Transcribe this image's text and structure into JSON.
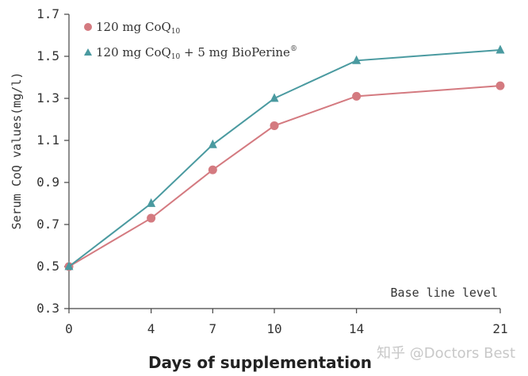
{
  "chart_data": {
    "type": "line",
    "title": "",
    "xlabel": "Days of supplementation",
    "ylabel": "Serum CoQ values(mg/l)",
    "x": [
      0,
      4,
      7,
      10,
      14,
      21
    ],
    "x_tick_labels": [
      "0",
      "4",
      "7",
      "10",
      "14",
      "21"
    ],
    "y_tick_labels": [
      "0.3",
      "0.5",
      "0.7",
      "0.9",
      "1.1",
      "1.3",
      "1.5",
      "1.7"
    ],
    "ylim": [
      0.3,
      1.7
    ],
    "grid": false,
    "legend_position": "top-left",
    "series": [
      {
        "name": "120 mg CoQ10",
        "legend_main": "120 mg CoQ",
        "legend_sub": "10",
        "legend_tail": "",
        "legend_sup": "",
        "marker": "circle",
        "color": "#d47a80",
        "values": [
          0.5,
          0.73,
          0.96,
          1.17,
          1.31,
          1.36
        ]
      },
      {
        "name": "120 mg CoQ10 + 5 mg BioPerine®",
        "legend_main": "120 mg CoQ",
        "legend_sub": "10",
        "legend_tail": " + 5 mg BioPerine",
        "legend_sup": "®",
        "marker": "triangle",
        "color": "#4a9aa0",
        "values": [
          0.5,
          0.8,
          1.08,
          1.3,
          1.48,
          1.53
        ]
      }
    ],
    "annotations": [
      "Base line level"
    ],
    "watermark": "知乎 @Doctors Best"
  }
}
